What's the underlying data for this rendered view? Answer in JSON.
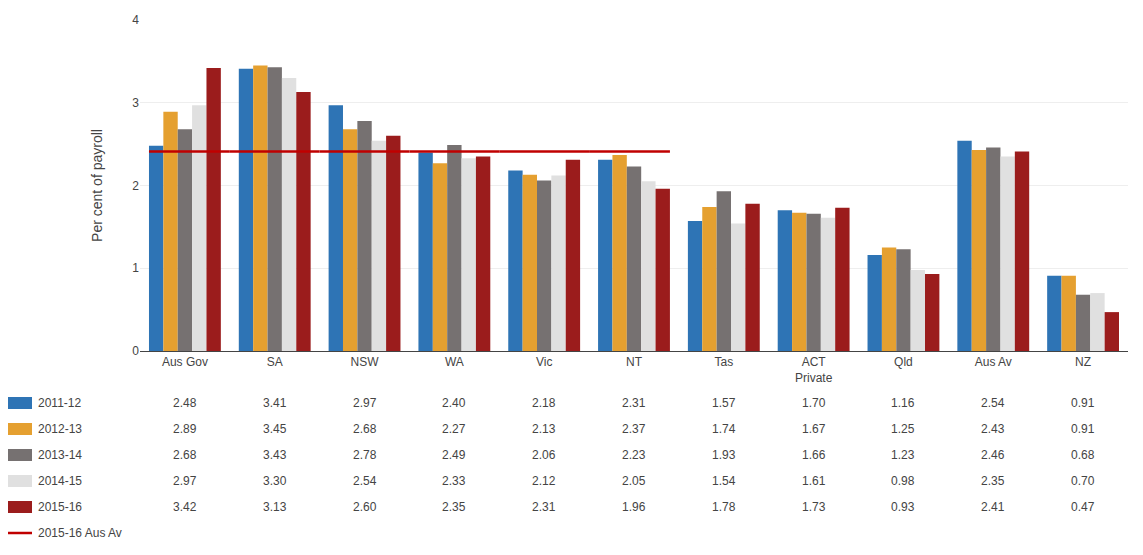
{
  "chart_data": {
    "type": "bar",
    "categories": [
      "Aus Gov",
      "SA",
      "NSW",
      "WA",
      "Vic",
      "NT",
      "Tas",
      "ACT\nPrivate",
      "Qld",
      "Aus Av",
      "NZ"
    ],
    "series": [
      {
        "name": "2011-12",
        "color": "#2E74B5",
        "values": [
          2.48,
          3.41,
          2.97,
          2.4,
          2.18,
          2.31,
          1.57,
          1.7,
          1.16,
          2.54,
          0.91
        ],
        "value_labels": [
          "2.48",
          "3.41",
          "2.97",
          "2.40",
          "2.18",
          "2.31",
          "1.57",
          "1.70",
          "1.16",
          "2.54",
          "0.91"
        ]
      },
      {
        "name": "2012-13",
        "color": "#E5A030",
        "values": [
          2.89,
          3.45,
          2.68,
          2.27,
          2.13,
          2.37,
          1.74,
          1.67,
          1.25,
          2.43,
          0.91
        ],
        "value_labels": [
          "2.89",
          "3.45",
          "2.68",
          "2.27",
          "2.13",
          "2.37",
          "1.74",
          "1.67",
          "1.25",
          "2.43",
          "0.91"
        ]
      },
      {
        "name": "2013-14",
        "color": "#767171",
        "values": [
          2.68,
          3.43,
          2.78,
          2.49,
          2.06,
          2.23,
          1.93,
          1.66,
          1.23,
          2.46,
          0.68
        ],
        "value_labels": [
          "2.68",
          "3.43",
          "2.78",
          "2.49",
          "2.06",
          "2.23",
          "1.93",
          "1.66",
          "1.23",
          "2.46",
          "0.68"
        ]
      },
      {
        "name": "2014-15",
        "color": "#E0E0E0",
        "values": [
          2.97,
          3.3,
          2.54,
          2.33,
          2.12,
          2.05,
          1.54,
          1.61,
          0.98,
          2.35,
          0.7
        ],
        "value_labels": [
          "2.97",
          "3.30",
          "2.54",
          "2.33",
          "2.12",
          "2.05",
          "1.54",
          "1.61",
          "0.98",
          "2.35",
          "0.70"
        ]
      },
      {
        "name": "2015-16",
        "color": "#9B1C1C",
        "values": [
          3.42,
          3.13,
          2.6,
          2.35,
          2.31,
          1.96,
          1.78,
          1.73,
          0.93,
          2.41,
          0.47
        ],
        "value_labels": [
          "3.42",
          "3.13",
          "2.60",
          "2.35",
          "2.31",
          "1.96",
          "1.78",
          "1.73",
          "0.93",
          "2.41",
          "0.47"
        ]
      },
      {
        "name": "2015-16 Aus Av",
        "type": "line",
        "color": "#C00000",
        "values": [
          2.41,
          2.41,
          2.41,
          2.41,
          2.41,
          2.41,
          null,
          null,
          null,
          null,
          null
        ]
      }
    ],
    "ylabel": "Per cent of payroll",
    "ylim": [
      0,
      4
    ],
    "yticks": [
      0,
      1,
      2,
      3,
      4
    ],
    "grid": true,
    "data_labels": true
  }
}
